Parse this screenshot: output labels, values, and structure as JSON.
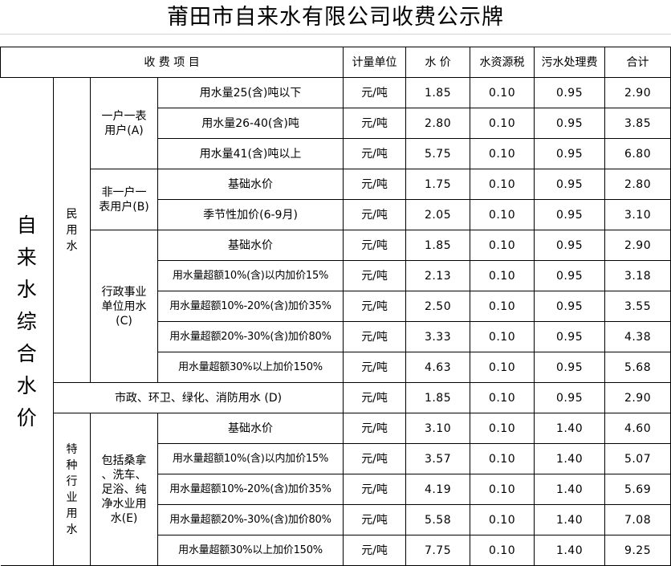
{
  "title": "莆田市自来水有限公司收费公示牌",
  "header": {
    "item": "收 费 项 目",
    "unit": "计量单位",
    "price": "水 价",
    "tax": "水资源税",
    "sewage": "污水处理费",
    "total": "合计"
  },
  "labels": {
    "main": "自\n来\n水\n综\n合\n水\n价",
    "minyong": "民\n用\n水",
    "a": "一户一表\n用户(A)",
    "b": "非一户一\n表用户(B)",
    "c": "行政事业\n单位用水\n(C)",
    "d": "市政、环卫、绿化、消防用水 (D)",
    "tezhong": "特\n种\n行\n业\n用\n水",
    "e": "包括桑拿\n、洗车、\n足浴、纯\n净水业用\n水(E)"
  },
  "rows": [
    {
      "item": "用水量25(含)吨以下",
      "unit": "元/吨",
      "price": "1.85",
      "tax": "0.10",
      "sewage": "0.95",
      "total": "2.90"
    },
    {
      "item": "用水量26-40(含)吨",
      "unit": "元/吨",
      "price": "2.80",
      "tax": "0.10",
      "sewage": "0.95",
      "total": "3.85"
    },
    {
      "item": "用水量41(含)吨以上",
      "unit": "元/吨",
      "price": "5.75",
      "tax": "0.10",
      "sewage": "0.95",
      "total": "6.80"
    },
    {
      "item": "基础水价",
      "unit": "元/吨",
      "price": "1.75",
      "tax": "0.10",
      "sewage": "0.95",
      "total": "2.80"
    },
    {
      "item": "季节性加价(6-9月)",
      "unit": "元/吨",
      "price": "2.05",
      "tax": "0.10",
      "sewage": "0.95",
      "total": "3.10"
    },
    {
      "item": "基础水价",
      "unit": "元/吨",
      "price": "1.85",
      "tax": "0.10",
      "sewage": "0.95",
      "total": "2.90"
    },
    {
      "item": "用水量超额10%(含)以内加价15%",
      "unit": "元/吨",
      "price": "2.13",
      "tax": "0.10",
      "sewage": "0.95",
      "total": "3.18"
    },
    {
      "item": "用水量超额10%-20%(含)加价35%",
      "unit": "元/吨",
      "price": "2.50",
      "tax": "0.10",
      "sewage": "0.95",
      "total": "3.55"
    },
    {
      "item": "用水量超额20%-30%(含)加价80%",
      "unit": "元/吨",
      "price": "3.33",
      "tax": "0.10",
      "sewage": "0.95",
      "total": "4.38"
    },
    {
      "item": "用水量超额30%以上加价150%",
      "unit": "元/吨",
      "price": "4.63",
      "tax": "0.10",
      "sewage": "0.95",
      "total": "5.68"
    },
    {
      "item": "",
      "unit": "元/吨",
      "price": "1.85",
      "tax": "0.10",
      "sewage": "0.95",
      "total": "2.90"
    },
    {
      "item": "基础水价",
      "unit": "元/吨",
      "price": "3.10",
      "tax": "0.10",
      "sewage": "1.40",
      "total": "4.60"
    },
    {
      "item": "用水量超额10%(含)以内加价15%",
      "unit": "元/吨",
      "price": "3.57",
      "tax": "0.10",
      "sewage": "1.40",
      "total": "5.07"
    },
    {
      "item": "用水量超额10%-20%(含)加价35%",
      "unit": "元/吨",
      "price": "4.19",
      "tax": "0.10",
      "sewage": "1.40",
      "total": "5.69"
    },
    {
      "item": "用水量超额20%-30%(含)加价80%",
      "unit": "元/吨",
      "price": "5.58",
      "tax": "0.10",
      "sewage": "1.40",
      "total": "7.08"
    },
    {
      "item": "用水量超额30%以上加价150%",
      "unit": "元/吨",
      "price": "7.75",
      "tax": "0.10",
      "sewage": "1.40",
      "total": "9.25"
    }
  ]
}
